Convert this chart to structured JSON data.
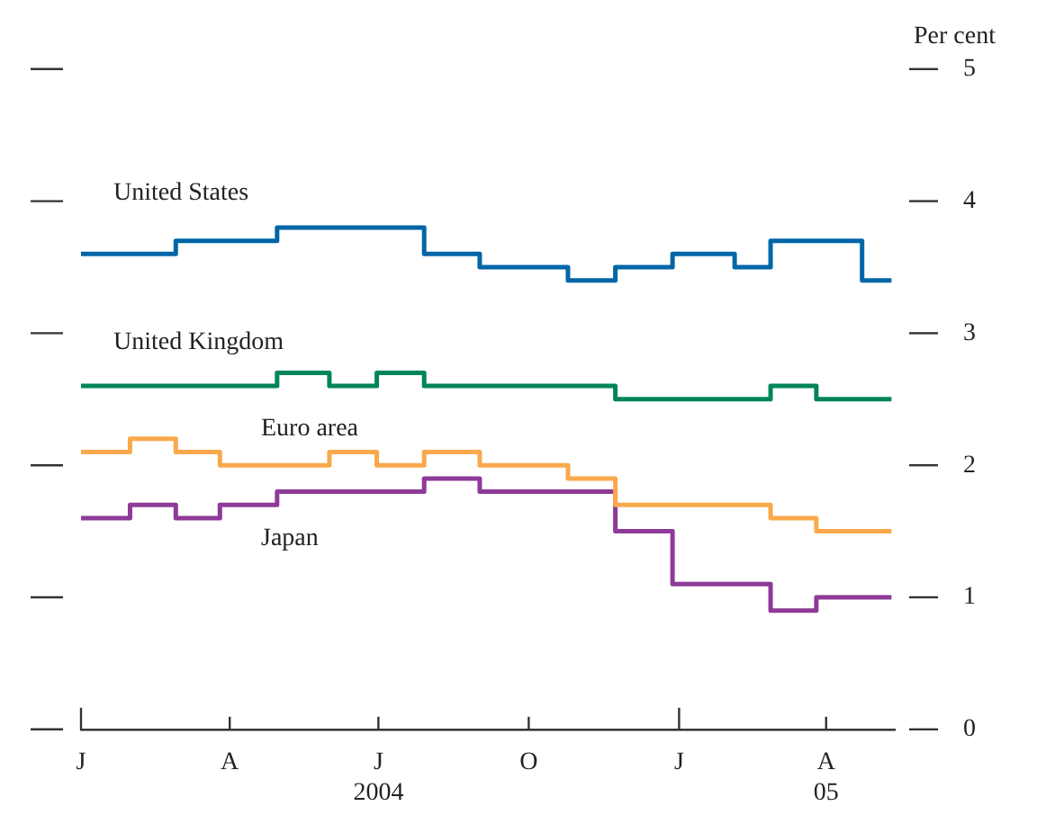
{
  "chart_data": {
    "type": "step",
    "ylabel": "Per cent",
    "ylim": [
      0,
      5
    ],
    "yticks": [
      0,
      1,
      2,
      3,
      4,
      5
    ],
    "xlim": [
      "2004-01-01",
      "2005-05-13"
    ],
    "xticks": [
      {
        "value": "2004-01-01",
        "label": "J"
      },
      {
        "value": "2004-04-01",
        "label": "A"
      },
      {
        "value": "2004-07-01",
        "label": "J\n2004"
      },
      {
        "value": "2004-10-01",
        "label": "O"
      },
      {
        "value": "2005-01-01",
        "label": "J"
      },
      {
        "value": "2005-04-01",
        "label": "A\n05"
      }
    ],
    "series": [
      {
        "name": "United States",
        "color": "#0066a8",
        "x": [
          "2004-01-01",
          "2004-02-28",
          "2004-04-30",
          "2004-07-29",
          "2004-09-01",
          "2004-10-25",
          "2004-11-23",
          "2004-12-28",
          "2005-02-04",
          "2005-02-26",
          "2005-04-23",
          "2005-05-11"
        ],
        "values": [
          3.6,
          3.7,
          3.8,
          3.6,
          3.5,
          3.4,
          3.5,
          3.6,
          3.5,
          3.7,
          3.4,
          3.4
        ]
      },
      {
        "name": "United Kingdom",
        "color": "#00855a",
        "x": [
          "2004-01-01",
          "2004-04-30",
          "2004-06-01",
          "2004-06-30",
          "2004-07-29",
          "2004-11-23",
          "2005-02-26",
          "2005-03-26",
          "2005-05-11"
        ],
        "values": [
          2.6,
          2.7,
          2.6,
          2.7,
          2.6,
          2.5,
          2.6,
          2.5,
          2.5
        ]
      },
      {
        "name": "Euro area",
        "color": "#f9a94b",
        "x": [
          "2004-01-01",
          "2004-01-31",
          "2004-02-28",
          "2004-03-26",
          "2004-06-01",
          "2004-06-30",
          "2004-07-29",
          "2004-09-01",
          "2004-10-25",
          "2004-11-23",
          "2005-02-26",
          "2005-03-26",
          "2005-05-11"
        ],
        "values": [
          2.1,
          2.2,
          2.1,
          2.0,
          2.1,
          2.0,
          2.1,
          2.0,
          1.9,
          1.7,
          1.6,
          1.5,
          1.5
        ]
      },
      {
        "name": "Japan",
        "color": "#8e3a98",
        "x": [
          "2004-01-01",
          "2004-01-31",
          "2004-02-28",
          "2004-03-26",
          "2004-04-30",
          "2004-07-29",
          "2004-09-01",
          "2004-11-23",
          "2004-12-28",
          "2005-02-26",
          "2005-03-26",
          "2005-05-11"
        ],
        "values": [
          1.6,
          1.7,
          1.6,
          1.7,
          1.8,
          1.9,
          1.8,
          1.5,
          1.1,
          0.9,
          1.0,
          1.0
        ]
      }
    ]
  }
}
